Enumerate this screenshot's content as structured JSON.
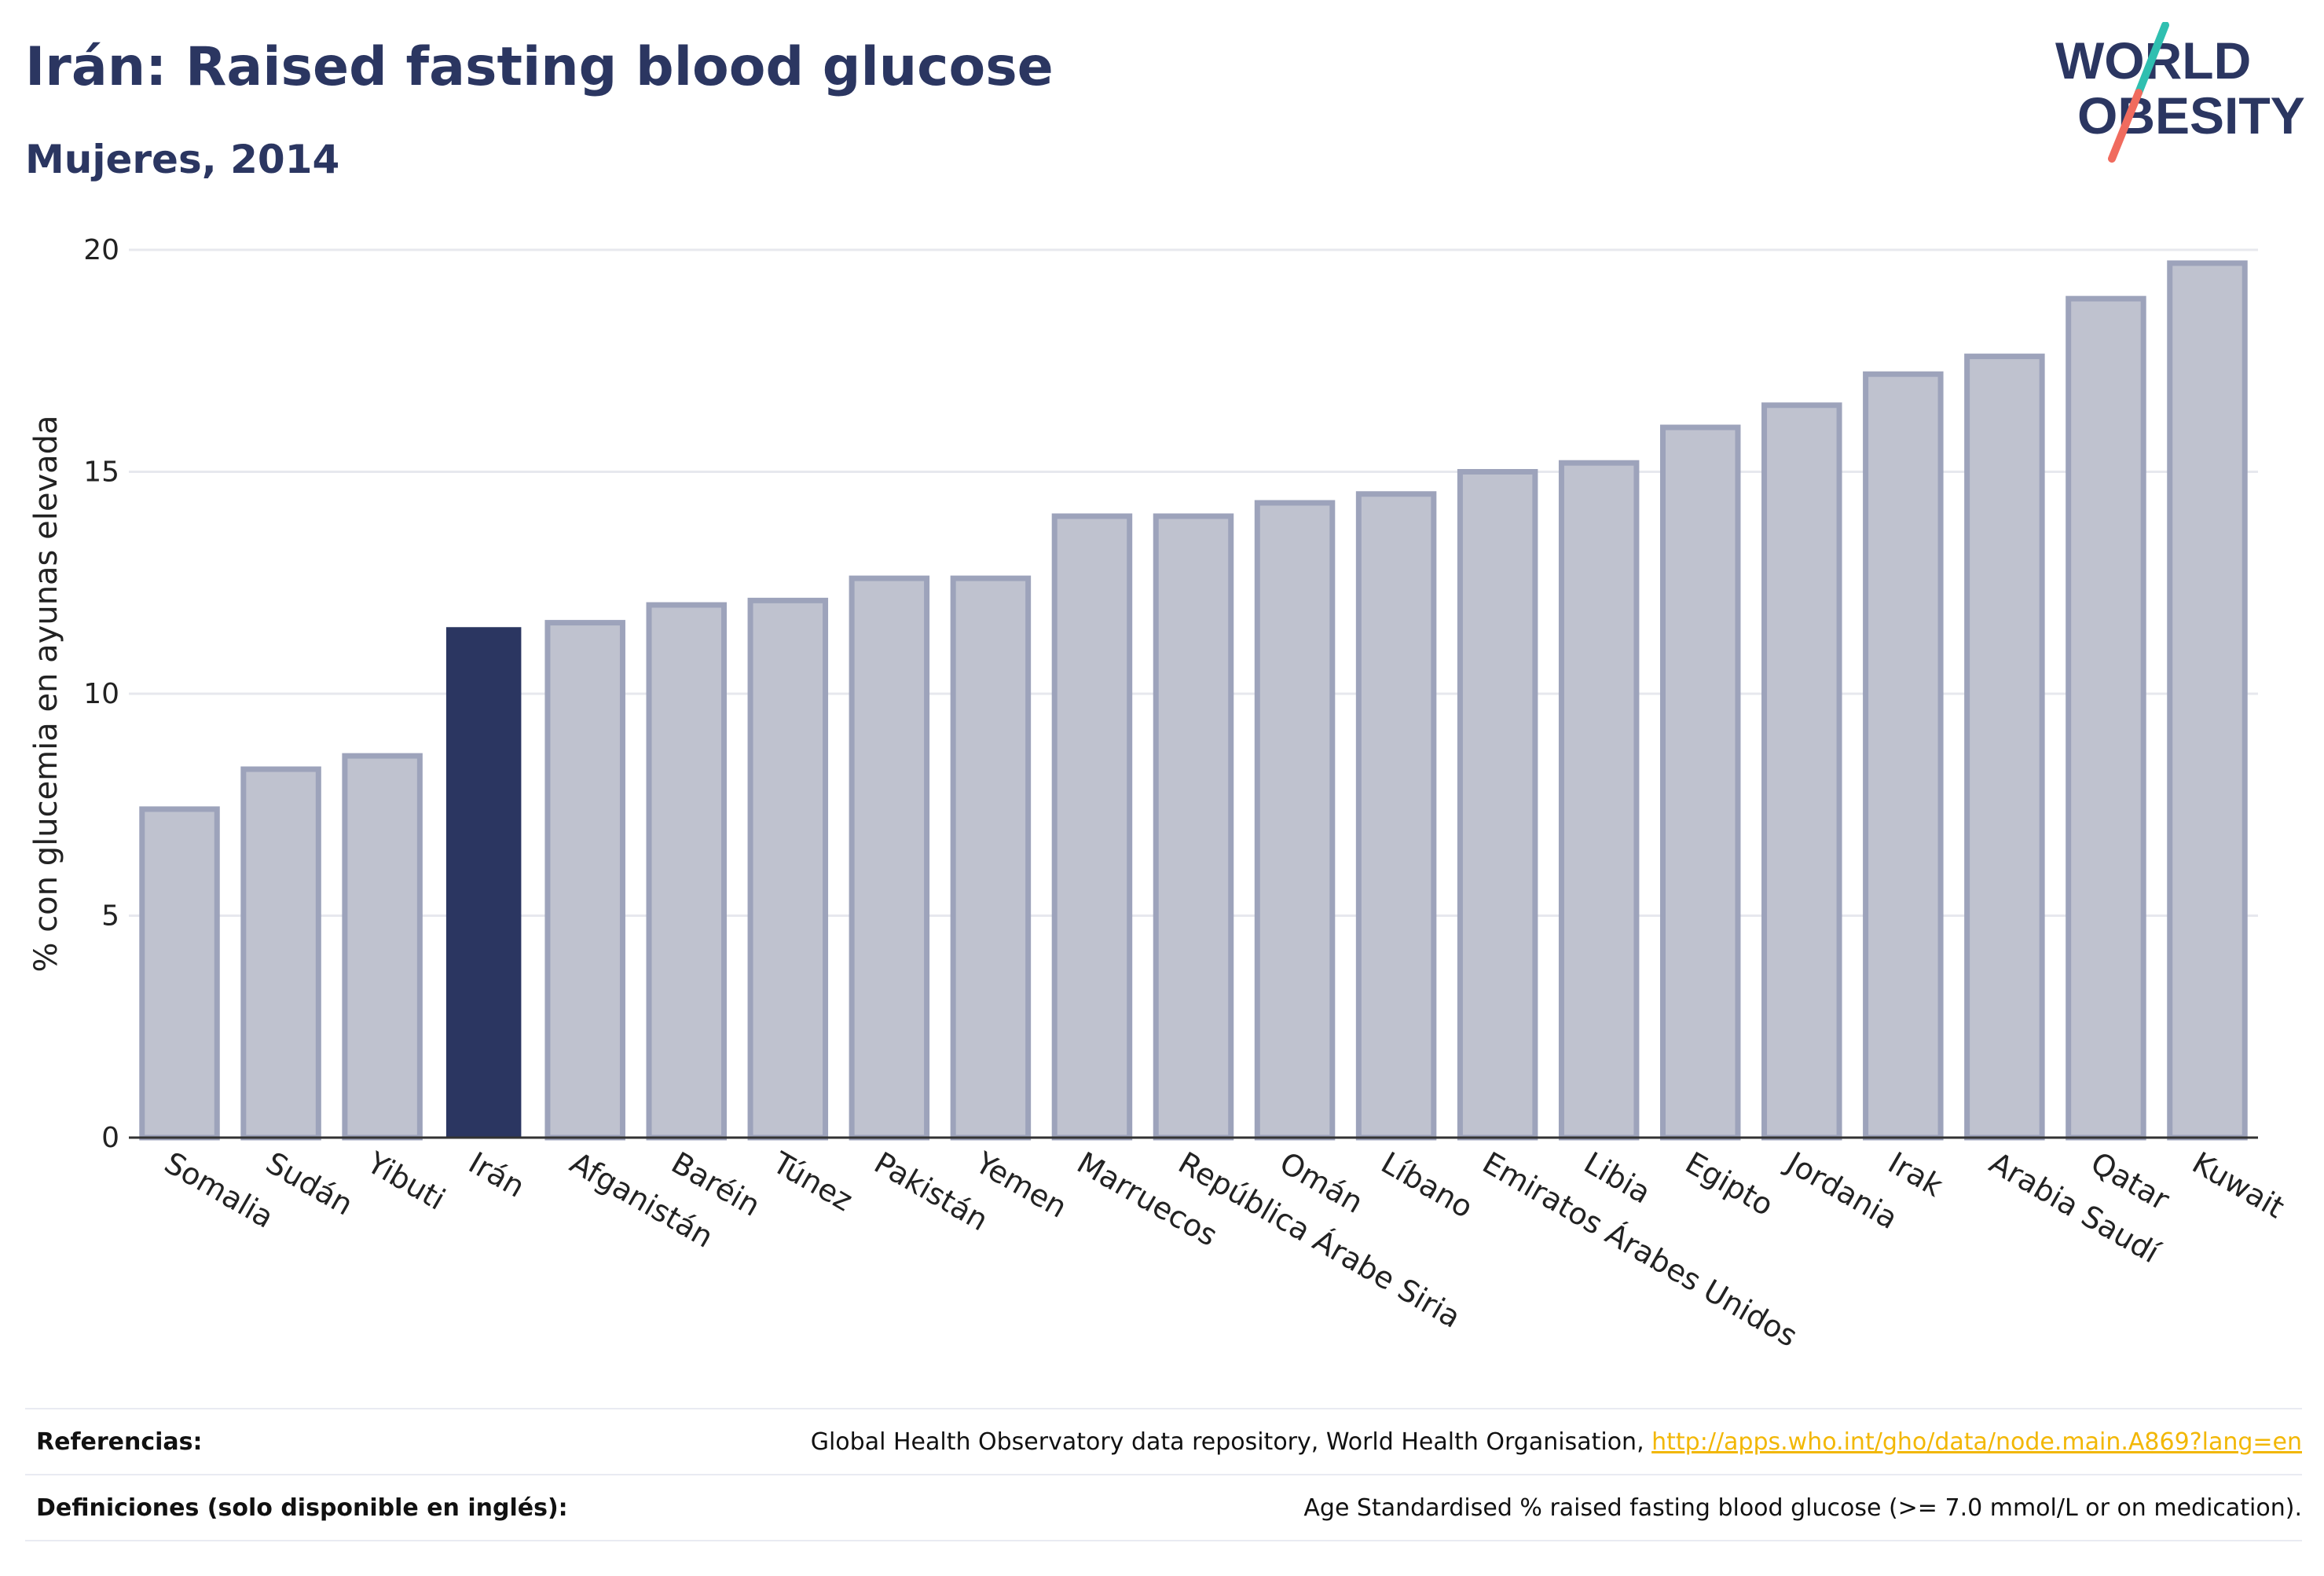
{
  "header": {
    "title": "Irán: Raised fasting blood glucose",
    "subtitle": "Mujeres, 2014"
  },
  "logo": {
    "line1": "WORLD",
    "line2": "OBESITY"
  },
  "colors": {
    "highlight": "#2b3661",
    "bar_fill": "#bfc2cf",
    "bar_stroke": "#9da3bb",
    "grid": "#e7e8ee",
    "axis": "#333333",
    "logo_text": "#2b3661",
    "logo_slash_teal": "#2fbfb0",
    "logo_slash_coral": "#f06b5e",
    "link": "#f2b705"
  },
  "chart_data": {
    "type": "bar",
    "title": "Irán: Raised fasting blood glucose",
    "subtitle": "Mujeres, 2014",
    "xlabel": "",
    "ylabel": "% con glucemia en ayunas elevada",
    "ylim": [
      0,
      20
    ],
    "yticks": [
      0,
      5,
      10,
      15,
      20
    ],
    "grid": true,
    "highlight": "Irán",
    "categories": [
      "Somalia",
      "Sudán",
      "Yibuti",
      "Irán",
      "Afganistán",
      "Baréin",
      "Túnez",
      "Pakistán",
      "Yemen",
      "Marruecos",
      "República Árabe Siria",
      "Omán",
      "Líbano",
      "Emiratos Árabes Unidos",
      "Libia",
      "Egipto",
      "Jordania",
      "Irak",
      "Arabia Saudí",
      "Qatar",
      "Kuwait"
    ],
    "values": [
      7.4,
      8.3,
      8.6,
      11.5,
      11.6,
      12.0,
      12.1,
      12.6,
      12.6,
      14.0,
      14.0,
      14.3,
      14.5,
      15.0,
      15.2,
      16.0,
      16.5,
      17.2,
      17.6,
      18.9,
      19.7
    ]
  },
  "references": {
    "label": "Referencias:",
    "text": "Global Health Observatory data repository, World Health Organisation, ",
    "link": "http://apps.who.int/gho/data/node.main.A869?lang=en"
  },
  "definitions": {
    "label": "Definiciones (solo disponible en inglés):",
    "text": "Age Standardised % raised fasting blood glucose (>= 7.0 mmol/L or on medication)."
  }
}
